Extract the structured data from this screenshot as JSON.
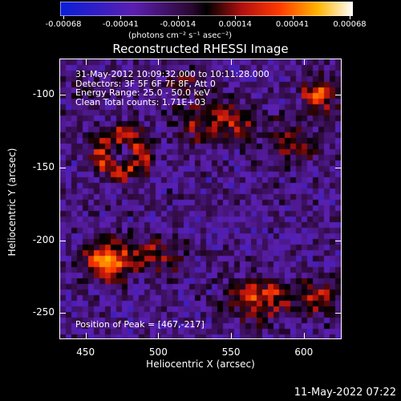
{
  "colorbar": {
    "labels": [
      "-0.00068",
      "-0.00041",
      "-0.00014",
      "0.00014",
      "0.00041",
      "0.00068"
    ],
    "units": "(photons cm⁻² s⁻¹ asec⁻²)"
  },
  "title": "Reconstructed RHESSI Image",
  "annotations": [
    "31-May-2012 10:09:32.000 to 10:11:28.000",
    "Detectors: 3F 5F 6F 7F 8F, Att 0",
    "Energy Range: 25.0 - 50.0 keV",
    "Clean     Total counts: 1.71E+03"
  ],
  "peak_text": "Position of Peak = [467,-217]",
  "axes": {
    "xlabel": "Heliocentric X (arcsec)",
    "ylabel": "Heliocentric Y (arcsec)",
    "xticks": [
      "450",
      "500",
      "550",
      "600"
    ],
    "yticks": [
      "-100",
      "-150",
      "-200",
      "-250"
    ]
  },
  "timestamp": "11-May-2022 07:22",
  "chart_data": {
    "type": "heatmap",
    "title": "Reconstructed RHESSI Image",
    "xlabel": "Heliocentric X (arcsec)",
    "ylabel": "Heliocentric Y (arcsec)",
    "xlim": [
      432,
      626
    ],
    "ylim": [
      -268,
      -75
    ],
    "colormap": "blue-purple-black-red-yellow-white",
    "color_range": [
      -0.00068,
      0.00068
    ],
    "peak": [
      467,
      -217
    ],
    "blobs": [
      {
        "x": 475,
        "y": -140,
        "amp": 0.00045,
        "sx": 18,
        "sy": 16,
        "ring": true
      },
      {
        "x": 465,
        "y": -215,
        "amp": 0.00068,
        "sx": 16,
        "sy": 14
      },
      {
        "x": 500,
        "y": -210,
        "amp": 0.00035,
        "sx": 18,
        "sy": 12
      },
      {
        "x": 540,
        "y": -118,
        "amp": 0.00045,
        "sx": 28,
        "sy": 14
      },
      {
        "x": 590,
        "y": -135,
        "amp": 0.0003,
        "sx": 18,
        "sy": 14
      },
      {
        "x": 610,
        "y": -100,
        "amp": 0.0005,
        "sx": 12,
        "sy": 14
      },
      {
        "x": 570,
        "y": -240,
        "amp": 0.0005,
        "sx": 22,
        "sy": 14
      },
      {
        "x": 610,
        "y": -240,
        "amp": 0.0004,
        "sx": 14,
        "sy": 12
      },
      {
        "x": 520,
        "y": -90,
        "amp": 0.00025,
        "sx": 16,
        "sy": 8
      },
      {
        "x": 450,
        "y": -95,
        "amp": 0.00018,
        "sx": 12,
        "sy": 10
      }
    ]
  }
}
